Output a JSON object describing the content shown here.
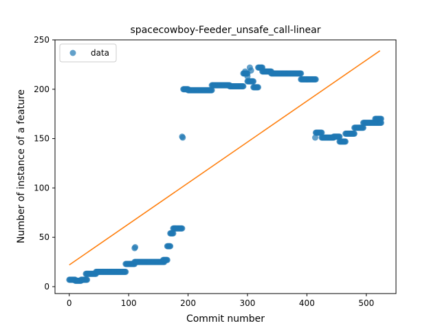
{
  "chart_data": {
    "type": "scatter",
    "title": "spacecowboy-Feeder_unsafe_call-linear",
    "xlabel": "Commit number",
    "ylabel": "Number of instance of a feature",
    "xlim": [
      -24,
      550
    ],
    "ylim": [
      -7,
      250
    ],
    "xticks": [
      "0",
      "100",
      "200",
      "300",
      "400",
      "500"
    ],
    "xtick_values": [
      0,
      100,
      200,
      300,
      400,
      500
    ],
    "yticks": [
      "0",
      "50",
      "100",
      "150",
      "200",
      "250"
    ],
    "ytick_values": [
      0,
      50,
      100,
      150,
      200,
      250
    ],
    "grid": false,
    "legend_position": "top-left",
    "series": [
      {
        "name": "data",
        "kind": "scatter",
        "color": "#1f77b4",
        "segments": [
          {
            "x0": 0,
            "x1": 10,
            "y": 7
          },
          {
            "x0": 10,
            "x1": 20,
            "y": 6
          },
          {
            "x0": 20,
            "x1": 30,
            "y": 7
          },
          {
            "x0": 28,
            "x1": 45,
            "y": 13
          },
          {
            "x0": 45,
            "x1": 95,
            "y": 15
          },
          {
            "x0": 95,
            "x1": 110,
            "y": 23
          },
          {
            "x0": 110,
            "x1": 160,
            "y": 25
          },
          {
            "x0": 158,
            "x1": 165,
            "y": 27
          },
          {
            "x0": 165,
            "x1": 170,
            "y": 41
          },
          {
            "x0": 170,
            "x1": 175,
            "y": 54
          },
          {
            "x0": 175,
            "x1": 190,
            "y": 59
          },
          {
            "x0": 192,
            "x1": 200,
            "y": 200
          },
          {
            "x0": 200,
            "x1": 240,
            "y": 199
          },
          {
            "x0": 240,
            "x1": 270,
            "y": 204
          },
          {
            "x0": 270,
            "x1": 293,
            "y": 203
          },
          {
            "x0": 293,
            "x1": 300,
            "y": 216
          },
          {
            "x0": 300,
            "x1": 310,
            "y": 208
          },
          {
            "x0": 310,
            "x1": 318,
            "y": 202
          },
          {
            "x0": 318,
            "x1": 325,
            "y": 222
          },
          {
            "x0": 325,
            "x1": 340,
            "y": 218
          },
          {
            "x0": 340,
            "x1": 390,
            "y": 216
          },
          {
            "x0": 390,
            "x1": 400,
            "y": 210
          },
          {
            "x0": 400,
            "x1": 415,
            "y": 210
          },
          {
            "x0": 415,
            "x1": 425,
            "y": 156
          },
          {
            "x0": 425,
            "x1": 445,
            "y": 151
          },
          {
            "x0": 445,
            "x1": 455,
            "y": 152
          },
          {
            "x0": 455,
            "x1": 465,
            "y": 147
          },
          {
            "x0": 465,
            "x1": 480,
            "y": 155
          },
          {
            "x0": 480,
            "x1": 495,
            "y": 161
          },
          {
            "x0": 495,
            "x1": 525,
            "y": 166
          },
          {
            "x0": 515,
            "x1": 525,
            "y": 170
          }
        ],
        "extra_points": [
          {
            "x": 110,
            "y": 39
          },
          {
            "x": 111,
            "y": 40
          },
          {
            "x": 190,
            "y": 152
          },
          {
            "x": 191,
            "y": 151
          },
          {
            "x": 304,
            "y": 222
          },
          {
            "x": 306,
            "y": 219
          },
          {
            "x": 296,
            "y": 218
          },
          {
            "x": 300,
            "y": 213
          },
          {
            "x": 414,
            "y": 151
          }
        ]
      },
      {
        "name": "",
        "kind": "line",
        "color": "#ff7f0e",
        "x": [
          0,
          523
        ],
        "y": [
          22,
          239
        ]
      }
    ]
  }
}
